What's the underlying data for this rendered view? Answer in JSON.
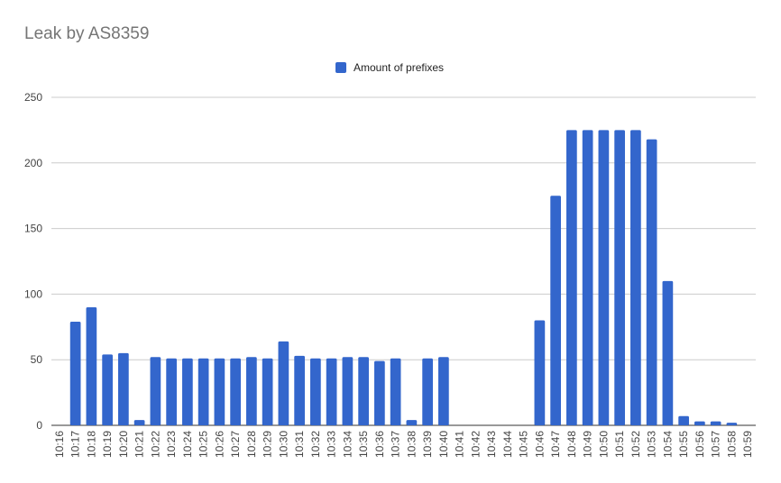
{
  "chart_data": {
    "type": "bar",
    "title": "Leak by AS8359",
    "xlabel": "",
    "ylabel": "",
    "ylim": [
      0,
      250
    ],
    "yticks": [
      0,
      50,
      100,
      150,
      200,
      250
    ],
    "grid": true,
    "legend_position": "top",
    "bar_color": "#3366cc",
    "categories": [
      "10:16",
      "10:17",
      "10:18",
      "10:19",
      "10:20",
      "10:21",
      "10:22",
      "10:23",
      "10:24",
      "10:25",
      "10:26",
      "10:27",
      "10:28",
      "10:29",
      "10:30",
      "10:31",
      "10:32",
      "10:33",
      "10:34",
      "10:35",
      "10:36",
      "10:37",
      "10:38",
      "10:39",
      "10:40",
      "10:41",
      "10:42",
      "10:43",
      "10:44",
      "10:45",
      "10:46",
      "10:47",
      "10:48",
      "10:49",
      "10:50",
      "10:51",
      "10:52",
      "10:53",
      "10:54",
      "10:55",
      "10:56",
      "10:57",
      "10:58",
      "10:59"
    ],
    "series": [
      {
        "name": "Amount of prefixes",
        "values": [
          0,
          79,
          90,
          54,
          55,
          4,
          52,
          51,
          51,
          51,
          51,
          51,
          52,
          51,
          64,
          53,
          51,
          51,
          52,
          52,
          49,
          51,
          4,
          51,
          52,
          0,
          0,
          0,
          0,
          0,
          80,
          175,
          225,
          225,
          225,
          225,
          225,
          218,
          110,
          7,
          3,
          3,
          2,
          0
        ]
      }
    ]
  }
}
